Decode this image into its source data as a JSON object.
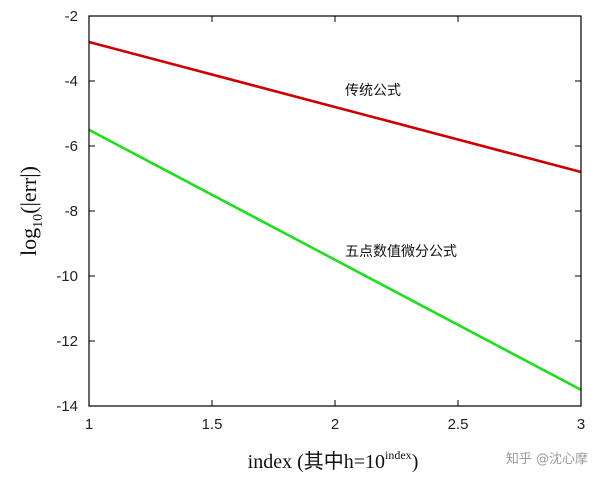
{
  "chart_data": {
    "type": "line",
    "xlim": [
      1,
      3
    ],
    "ylim": [
      -14,
      -2
    ],
    "x_ticks": [
      "1",
      "1.5",
      "2",
      "2.5",
      "3"
    ],
    "x_tick_values": [
      1,
      1.5,
      2,
      2.5,
      3
    ],
    "y_ticks": [
      "-2",
      "-4",
      "-6",
      "-8",
      "-10",
      "-12",
      "-14"
    ],
    "y_tick_values": [
      -2,
      -4,
      -6,
      -8,
      -10,
      -12,
      -14
    ],
    "xlabel": {
      "main": "index (其中h=10",
      "sup": "index",
      "close": ")"
    },
    "ylabel": {
      "main": "log",
      "sub": "10",
      "rest": "(|err|)"
    },
    "grid": false,
    "series": [
      {
        "name": "传统公式",
        "color": "#cc0000",
        "x": [
          1,
          3
        ],
        "y": [
          -2.8,
          -6.8
        ]
      },
      {
        "name": "五点数值微分公式",
        "color": "#22dd22",
        "x": [
          1,
          3
        ],
        "y": [
          -5.5,
          -13.5
        ]
      }
    ],
    "annotations": [
      {
        "text": "传统公式",
        "x": 2.05,
        "y": -4.3
      },
      {
        "text": "五点数值微分公式",
        "x": 2.05,
        "y": -9.3
      }
    ]
  },
  "watermark": "知乎 @沈心摩"
}
